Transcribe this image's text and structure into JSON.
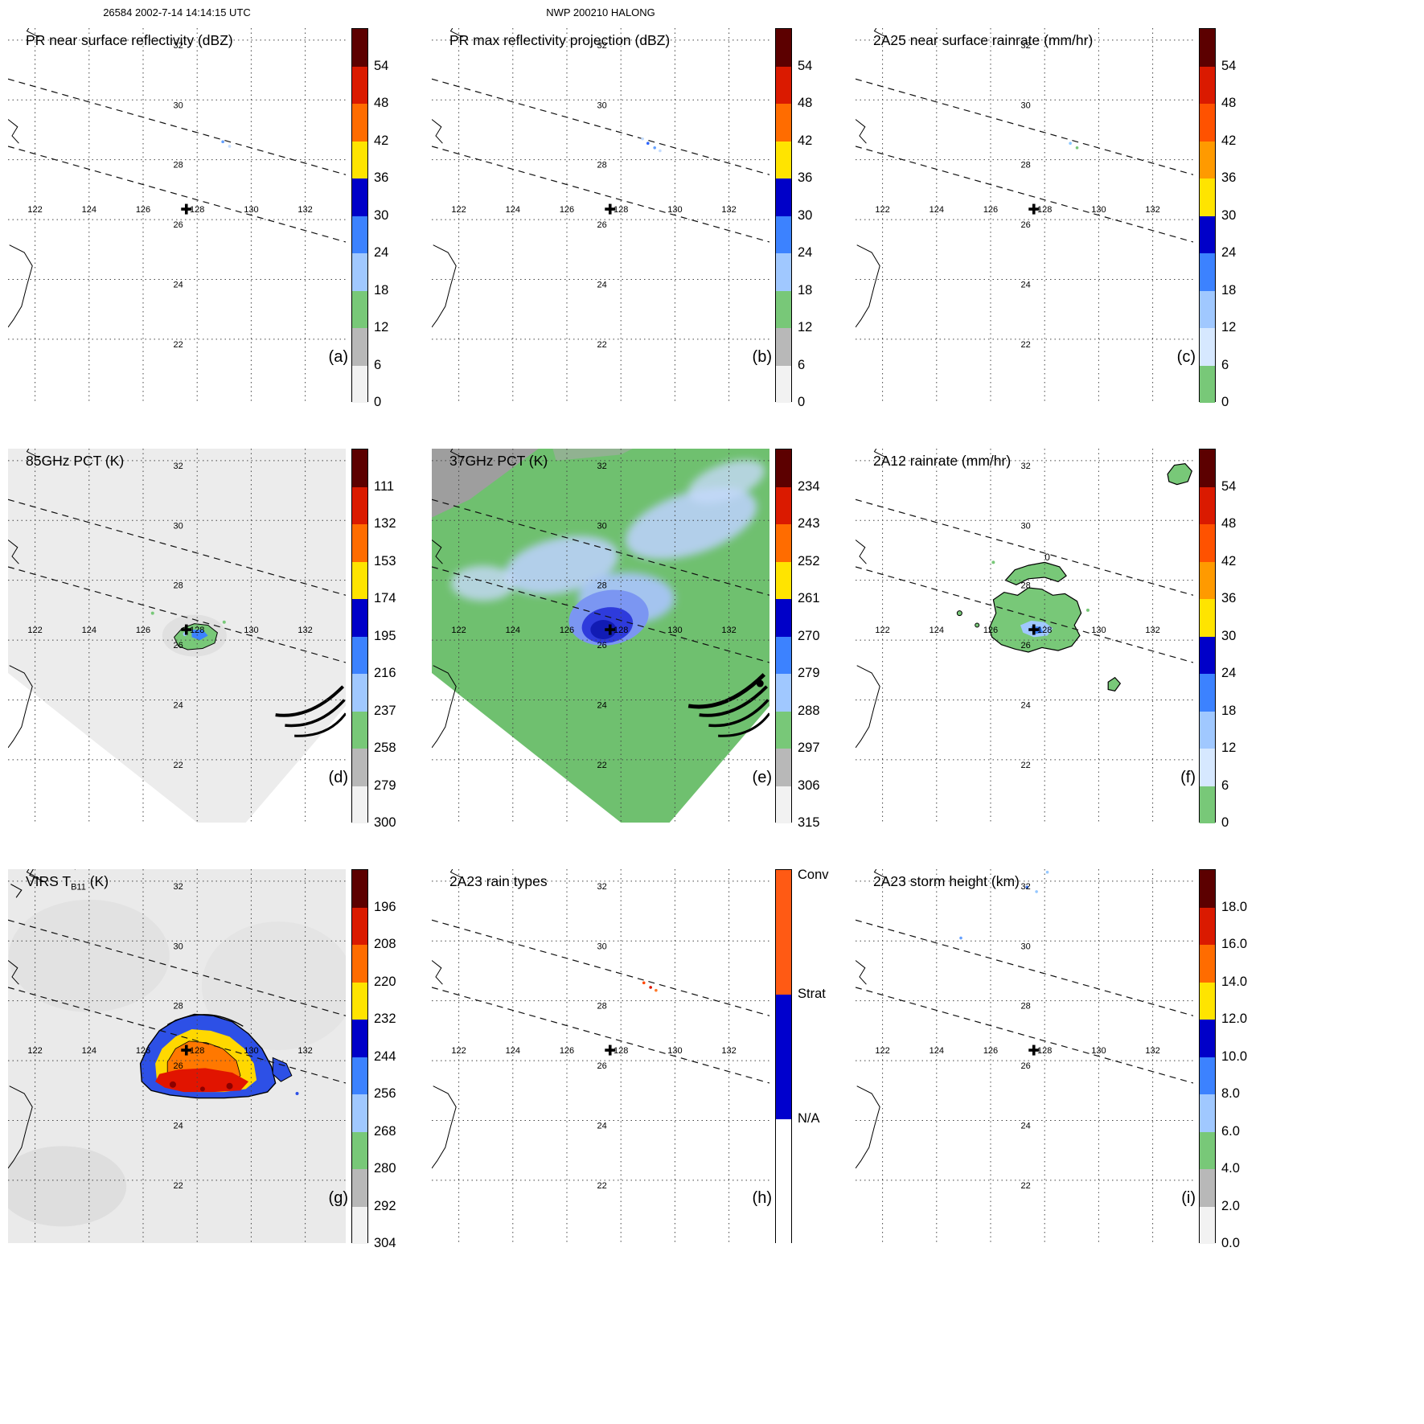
{
  "header": {
    "left": "26584 2002-7-14 14:14:15 UTC",
    "center": "NWP 200210 HALONG"
  },
  "colors": {
    "scale_a": [
      "#5c0000",
      "#da1a00",
      "#ff6c00",
      "#ffe400",
      "#0000c8",
      "#3c82ff",
      "#a0c8ff",
      "#78c878",
      "#b8b8b8",
      "#f2f2f2"
    ],
    "scale_b": [
      "#5c0000",
      "#da1a00",
      "#ff5200",
      "#ff9a00",
      "#ffe400",
      "#0000c8",
      "#3c82ff",
      "#a0c8ff",
      "#d6e8ff",
      "#78c878"
    ],
    "raintype": [
      "#ff5a14",
      "#0000cd",
      "#ffffff"
    ],
    "grid": "#444444",
    "coast": "#000000"
  },
  "axes": {
    "lon_ticks": [
      122,
      124,
      126,
      128,
      130,
      132
    ],
    "lat_ticks": [
      22,
      24,
      26,
      28,
      30,
      32
    ]
  },
  "marker": {
    "lon": 127.6,
    "lat": 26.35
  },
  "panels": [
    {
      "id": "a",
      "letter": "(a)",
      "title": "PR near surface reflectivity (dBZ)",
      "colorbar": {
        "scale": "scale_a",
        "labels": [
          "54",
          "48",
          "42",
          "36",
          "30",
          "24",
          "18",
          "12",
          "6",
          "0"
        ]
      }
    },
    {
      "id": "b",
      "letter": "(b)",
      "title": "PR max reflectivity projection (dBZ)",
      "colorbar": {
        "scale": "scale_a",
        "labels": [
          "54",
          "48",
          "42",
          "36",
          "30",
          "24",
          "18",
          "12",
          "6",
          "0"
        ]
      }
    },
    {
      "id": "c",
      "letter": "(c)",
      "title": "2A25 near surface rainrate (mm/hr)",
      "colorbar": {
        "scale": "scale_b",
        "labels": [
          "54",
          "48",
          "42",
          "36",
          "30",
          "24",
          "18",
          "12",
          "6",
          "0"
        ]
      }
    },
    {
      "id": "d",
      "letter": "(d)",
      "title": "85GHz PCT (K)",
      "colorbar": {
        "scale": "scale_a",
        "labels": [
          "111",
          "132",
          "153",
          "174",
          "195",
          "216",
          "237",
          "258",
          "279",
          "300"
        ]
      }
    },
    {
      "id": "e",
      "letter": "(e)",
      "title": "37GHz PCT (K)",
      "colorbar": {
        "scale": "scale_a",
        "labels": [
          "234",
          "243",
          "252",
          "261",
          "270",
          "279",
          "288",
          "297",
          "306",
          "315"
        ]
      }
    },
    {
      "id": "f",
      "letter": "(f)",
      "title": "2A12 rainrate (mm/hr)",
      "contour_label": "0",
      "colorbar": {
        "scale": "scale_b",
        "labels": [
          "54",
          "48",
          "42",
          "36",
          "30",
          "24",
          "18",
          "12",
          "6",
          "0"
        ]
      }
    },
    {
      "id": "g",
      "letter": "(g)",
      "title_pre": "VIRS T",
      "title_sub": "B11",
      "title_post": " (K)",
      "colorbar": {
        "scale": "scale_a",
        "labels": [
          "196",
          "208",
          "220",
          "232",
          "244",
          "256",
          "268",
          "280",
          "292",
          "304"
        ]
      }
    },
    {
      "id": "h",
      "letter": "(h)",
      "title": "2A23 rain types",
      "colorbar": {
        "scale": "raintype",
        "labels": [
          "Conv",
          "Strat",
          "N/A"
        ]
      }
    },
    {
      "id": "i",
      "letter": "(i)",
      "title": "2A23 storm height (km)",
      "colorbar": {
        "scale": "scale_a",
        "labels": [
          "18.0",
          "16.0",
          "14.0",
          "12.0",
          "10.0",
          "8.0",
          "6.0",
          "4.0",
          "2.0",
          "0.0"
        ]
      }
    }
  ],
  "chart_data": {
    "type": "heatmap",
    "figure": "3x3 grid of TRMM satellite overpass maps for tropical cyclone HALONG",
    "orbit_header": {
      "orbit": "26584",
      "datetime": "2002-7-14 14:14:15 UTC",
      "storm": "NWP 200210 HALONG"
    },
    "shared_axes": {
      "lon_range": [
        121.0,
        133.5
      ],
      "lat_range": [
        19.9,
        32.4
      ],
      "lon_gridlines": [
        122,
        124,
        126,
        128,
        130,
        132
      ],
      "lat_gridlines": [
        22,
        24,
        26,
        28,
        30,
        32
      ],
      "grid_style": "dotted",
      "storm_center_marker": {
        "lon": 127.6,
        "lat": 26.35
      },
      "pr_swath_dashed_lines": [
        {
          "from": [
            121.0,
            30.7
          ],
          "to": [
            133.5,
            27.5
          ]
        },
        {
          "from": [
            121.0,
            28.45
          ],
          "to": [
            133.5,
            25.25
          ]
        }
      ]
    },
    "panels": [
      {
        "id": "a",
        "title": "PR near surface reflectivity (dBZ)",
        "unit": "dBZ",
        "colorbar_ticks": [
          54,
          48,
          42,
          36,
          30,
          24,
          18,
          12,
          6,
          0
        ],
        "depicted": "nearly empty PR swath; a few weak echo pixels (18-30 dBZ) near 129E 28.5N"
      },
      {
        "id": "b",
        "title": "PR max reflectivity projection (dBZ)",
        "unit": "dBZ",
        "colorbar_ticks": [
          54,
          48,
          42,
          36,
          30,
          24,
          18,
          12,
          6,
          0
        ],
        "depicted": "nearly empty; small cluster of echo pixels near 129E 28.4-28.7N"
      },
      {
        "id": "c",
        "title": "2A25 near surface rainrate (mm/hr)",
        "unit": "mm/hr",
        "colorbar_ticks": [
          54,
          48,
          42,
          36,
          30,
          24,
          18,
          12,
          6,
          0
        ],
        "depicted": "nearly empty; trace rain pixels near 129E 28.5N"
      },
      {
        "id": "d",
        "title": "85GHz PCT (K)",
        "unit": "K",
        "colorbar_ticks": [
          111,
          132,
          153,
          174,
          195,
          216,
          237,
          258,
          279,
          300
        ],
        "depicted": "warm (280-300 K) TMI swath covering most of domain; small depressed-PCT cell (195-258 K) near 127.5-128.7E 25.7-26.5N; scan-edge artifacts near 131-133.5E 23-24.5N"
      },
      {
        "id": "e",
        "title": "37GHz PCT (K)",
        "unit": "K",
        "colorbar_ticks": [
          234,
          243,
          252,
          261,
          270,
          279,
          288,
          297,
          306,
          315
        ],
        "depicted": "ocean background 279-297 K (green); land/cold surface 297-315 K (gray) northwest; moist band 261-279 K (light blue); strong depression 234-252 K (dark blue) centered near 127.5E 26.5N"
      },
      {
        "id": "f",
        "title": "2A12 rainrate (mm/hr)",
        "unit": "mm/hr",
        "colorbar_ticks": [
          54,
          48,
          42,
          36,
          30,
          24,
          18,
          12,
          6,
          0
        ],
        "depicted": "light rain (0-6 mm/hr, green, black-contoured) patches over 126-129.5E 25.6-28.6N with 6-24 mm/hr core near 127.5E 26.4N; isolated cells near 133E 31.6N and 130.5E 24.5N; contour label 0"
      },
      {
        "id": "g",
        "title": "VIRS TB11 (K)",
        "unit": "K",
        "colorbar_ticks": [
          196,
          208,
          220,
          232,
          244,
          256,
          268,
          280,
          292,
          304
        ],
        "depicted": "warm clear background 280-304 K; deep convective cloud shield 196-244 K (orange/red core, blue rim) spanning 126-131E 24.8-27.6N; cold cloud contours near 121-124E 31.5-33.3N"
      },
      {
        "id": "h",
        "title": "2A23 rain types",
        "unit": "category",
        "colorbar_ticks": [
          "Conv",
          "Strat",
          "N/A"
        ],
        "depicted": "almost entirely N/A; a few convective/stratiform pixels near 129E 28.4-28.6N"
      },
      {
        "id": "i",
        "title": "2A23 storm height (km)",
        "unit": "km",
        "colorbar_ticks": [
          18.0,
          16.0,
          14.0,
          12.0,
          10.0,
          8.0,
          6.0,
          4.0,
          2.0,
          0.0
        ],
        "depicted": "almost empty; a few 4-8 km storm-height pixels near 127.3-128.1E 31.6-32.3N"
      }
    ]
  }
}
